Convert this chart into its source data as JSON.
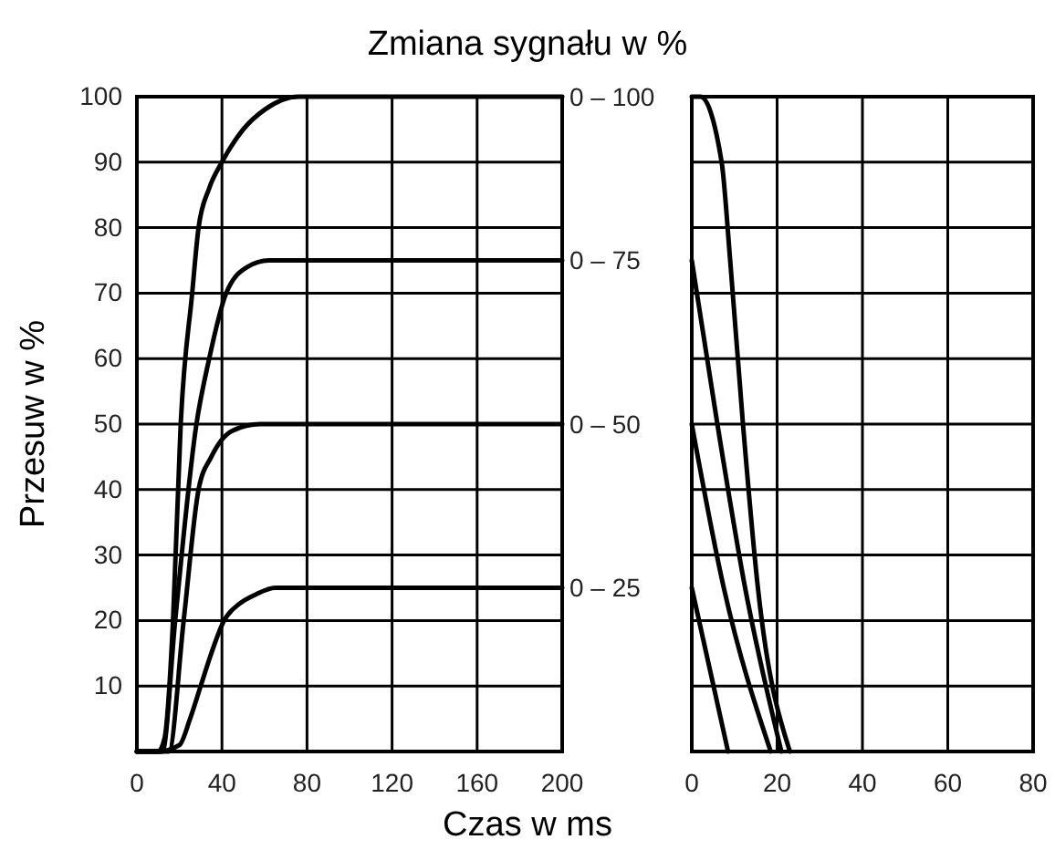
{
  "chart_data": [
    {
      "type": "line",
      "title": "Zmiana sygnału w %",
      "xlabel": "Czas w ms",
      "ylabel": "Przesuw w %",
      "xlim": [
        0,
        200
      ],
      "xticks": [
        0,
        40,
        80,
        120,
        160,
        200
      ],
      "ylim": [
        0,
        100
      ],
      "yticks": [
        10,
        20,
        30,
        40,
        50,
        60,
        70,
        80,
        90,
        100
      ],
      "grid": true,
      "marker": "none",
      "line_style": "solid",
      "series": [
        {
          "name": "0 – 100",
          "color": "#000000",
          "x": [
            0,
            10,
            13,
            17,
            20.6,
            26,
            29,
            34,
            40,
            50,
            60,
            76,
            200
          ],
          "values": [
            0,
            0,
            2,
            20,
            50,
            70,
            80,
            86,
            90,
            95,
            98,
            100,
            100
          ]
        },
        {
          "name": "0 – 75",
          "color": "#000000",
          "x": [
            0,
            12,
            18,
            28,
            34,
            42,
            52,
            62,
            200
          ],
          "values": [
            0,
            0,
            20,
            50,
            60,
            70,
            74,
            75,
            75
          ]
        },
        {
          "name": "0 – 50",
          "color": "#000000",
          "x": [
            0,
            15,
            22,
            29,
            35,
            45,
            58,
            200
          ],
          "values": [
            0,
            0,
            20,
            40,
            45,
            49,
            50,
            50
          ]
        },
        {
          "name": "0 – 25",
          "color": "#000000",
          "x": [
            0,
            10,
            20,
            25,
            30,
            35,
            41,
            48,
            56,
            65,
            200
          ],
          "values": [
            0,
            0,
            1,
            5,
            10,
            15,
            20,
            22.5,
            24,
            25,
            25
          ]
        }
      ]
    },
    {
      "type": "line",
      "xlim": [
        0,
        80
      ],
      "xticks": [
        0,
        20,
        40,
        60,
        80
      ],
      "ylim": [
        0,
        100
      ],
      "yticks": [
        10,
        20,
        30,
        40,
        50,
        60,
        70,
        80,
        90,
        100
      ],
      "tick_labels": "x",
      "grid": true,
      "marker": "none",
      "line_style": "solid",
      "series": [
        {
          "color": "#000000",
          "x": [
            0,
            2,
            7,
            9,
            12,
            15.5,
            23
          ],
          "values": [
            100,
            100,
            90,
            75,
            50,
            25,
            0
          ]
        },
        {
          "color": "#000000",
          "x": [
            0,
            6,
            12.5,
            21
          ],
          "values": [
            75,
            50,
            25,
            0
          ]
        },
        {
          "color": "#000000",
          "x": [
            0,
            7.5,
            18.5
          ],
          "values": [
            50,
            25,
            0
          ]
        },
        {
          "color": "#000000",
          "x": [
            0,
            8.5
          ],
          "values": [
            25,
            0
          ]
        }
      ]
    }
  ]
}
